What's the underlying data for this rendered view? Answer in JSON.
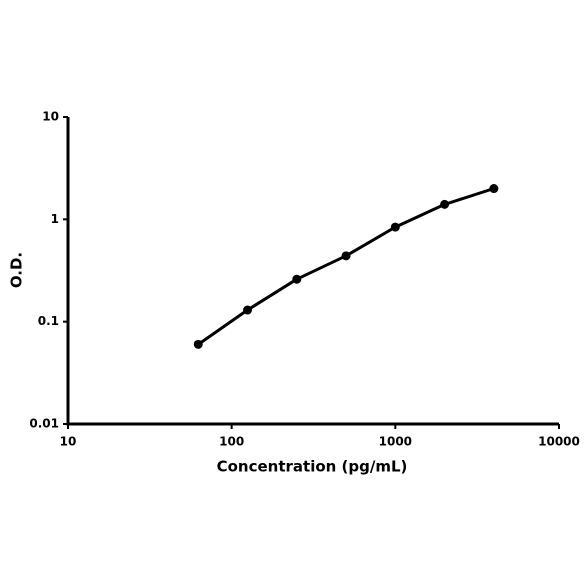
{
  "chart_data": {
    "type": "line",
    "xlabel": "Concentration (pg/mL)",
    "ylabel": "O.D.",
    "x": [
      62.5,
      125,
      250,
      500,
      1000,
      2000,
      4000
    ],
    "series": [
      {
        "color": "#000000",
        "values": [
          0.06,
          0.13,
          0.26,
          0.44,
          0.84,
          1.4,
          2.0
        ]
      }
    ],
    "xscale": "log",
    "yscale": "log",
    "xlim": [
      10,
      10000
    ],
    "ylim": [
      0.01,
      10
    ],
    "xticks": [
      10,
      100,
      1000,
      10000
    ],
    "yticks": [
      0.01,
      0.1,
      1,
      10
    ],
    "grid": false
  }
}
